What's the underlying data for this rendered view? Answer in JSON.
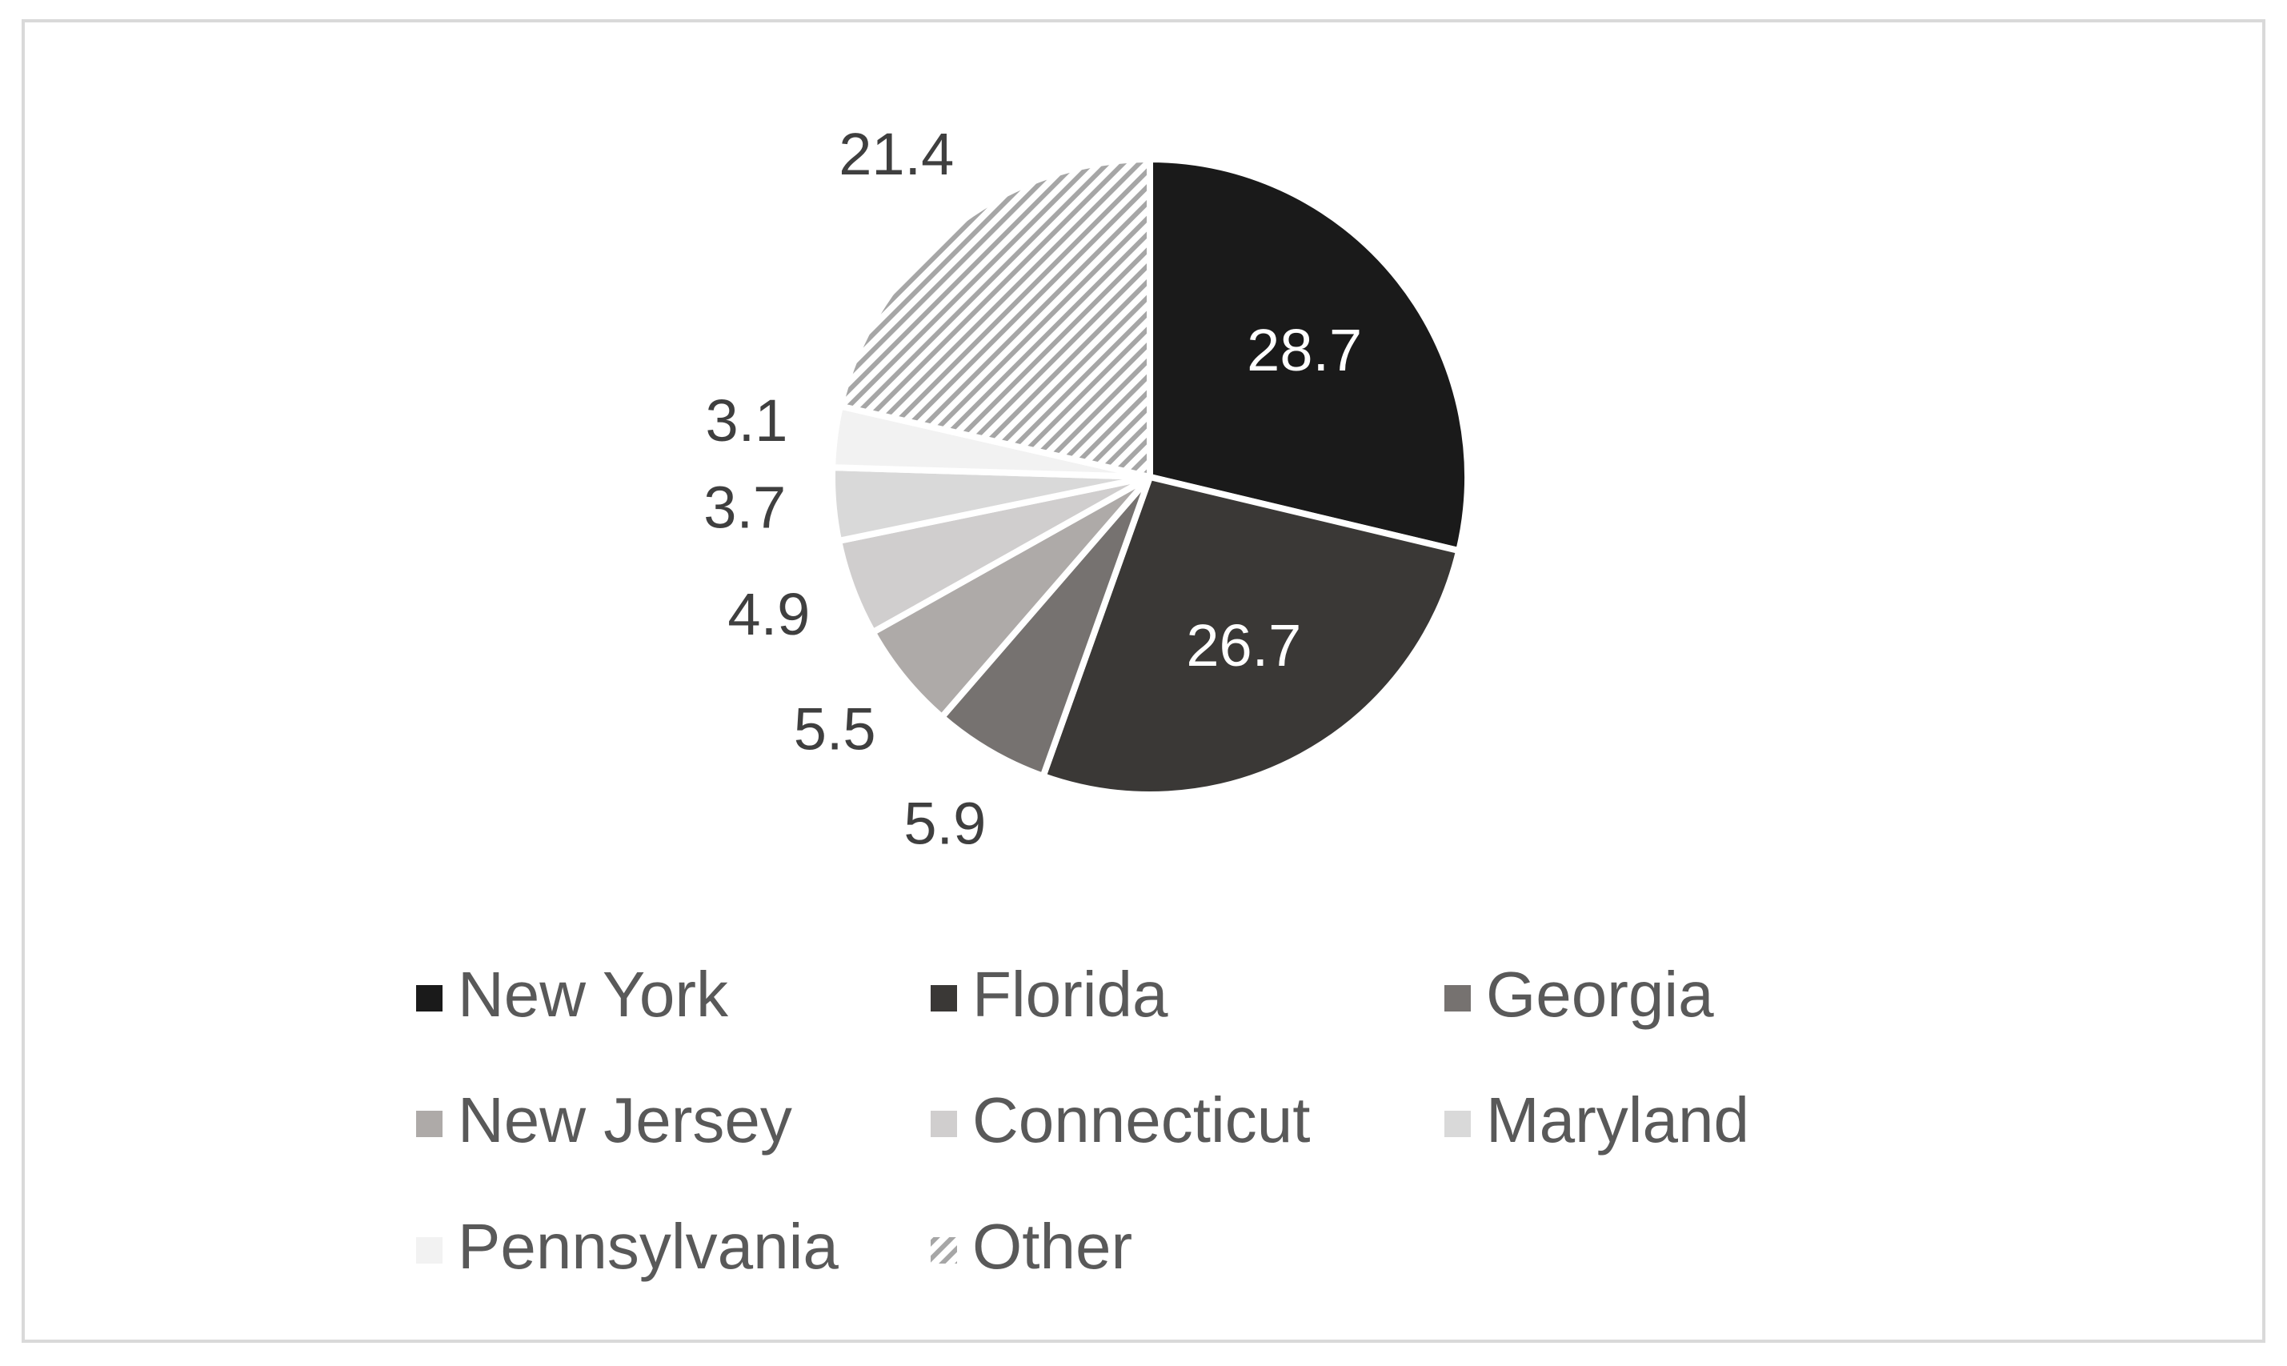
{
  "chart_data": {
    "type": "pie",
    "categories": [
      "New York",
      "Florida",
      "Georgia",
      "New Jersey",
      "Connecticut",
      "Maryland",
      "Pennsylvania",
      "Other"
    ],
    "values": [
      28.7,
      26.7,
      5.9,
      5.5,
      4.9,
      3.7,
      3.1,
      21.4
    ],
    "colors": [
      "#1a1a1a",
      "#3a3836",
      "#767270",
      "#aeaaa8",
      "#d0cece",
      "#d9d9d9",
      "#f2f2f2",
      "#a6a6a6"
    ],
    "hatch": [
      false,
      false,
      false,
      false,
      false,
      false,
      false,
      true
    ],
    "legend": "bottom"
  }
}
